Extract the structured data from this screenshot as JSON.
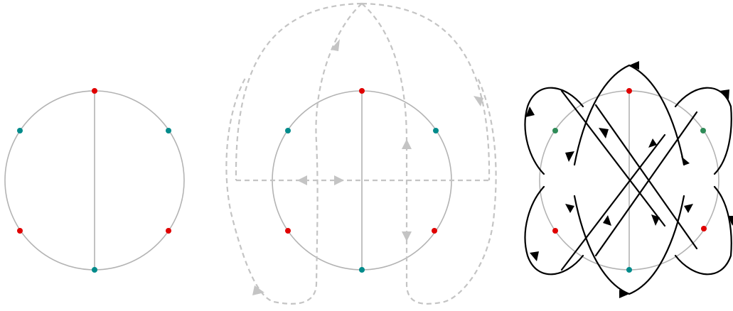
{
  "figure": {
    "panels": [
      "chord-diagram",
      "chord-diagram-with-dashed-paths",
      "knot-diagram"
    ],
    "colors": {
      "circle": "#b3b3b3",
      "red_dot": "#e00000",
      "teal_dot": "#008b8b",
      "green_dot": "#2e8b57",
      "dashed_path": "#c4c4c4",
      "strand": "#000000"
    },
    "dot_labels": {
      "panel1": [
        "red",
        "teal",
        "teal",
        "red",
        "red",
        "teal"
      ],
      "panel2": [
        "red",
        "teal",
        "teal",
        "red",
        "red",
        "teal"
      ],
      "panel3": [
        "red",
        "green",
        "green",
        "red",
        "red",
        "teal"
      ]
    }
  }
}
